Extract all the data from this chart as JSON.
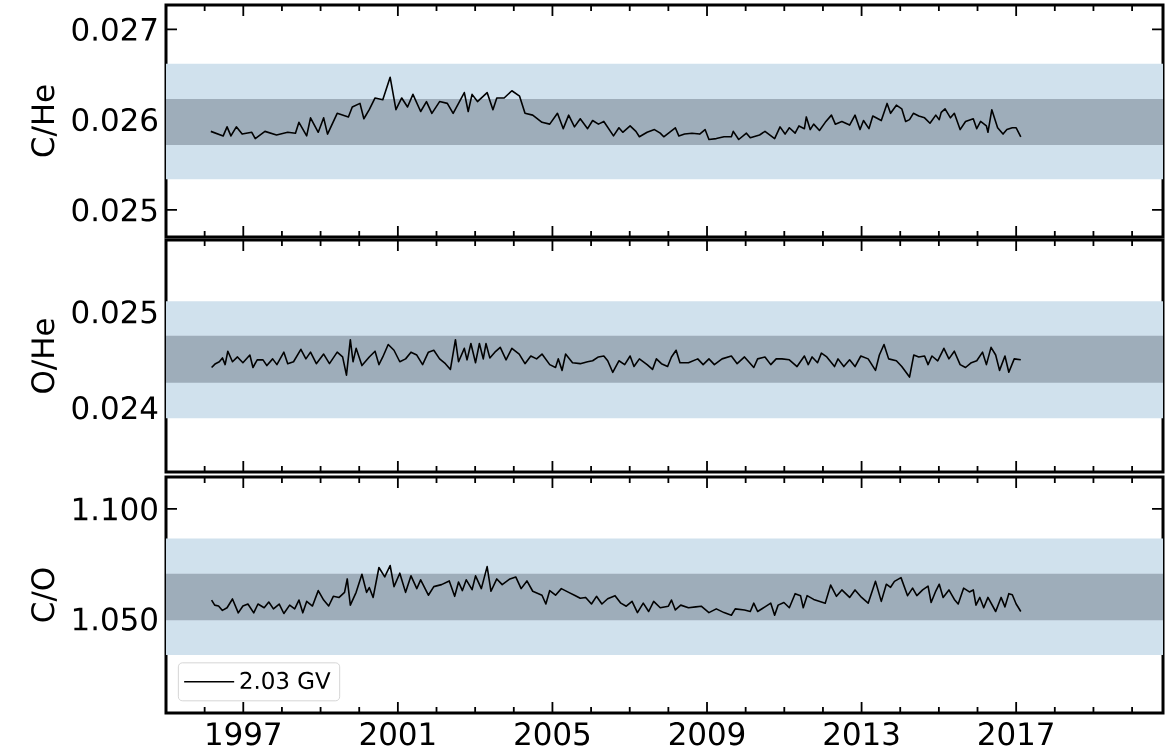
{
  "chart_data": [
    {
      "type": "line",
      "ylabel": "C/He",
      "xlim": [
        1995,
        2020.8
      ],
      "ylim": [
        0.0247,
        0.02727
      ],
      "xticks": [
        {
          "value": 1996,
          "label": null
        },
        1997,
        {
          "value": 1998,
          "label": null
        },
        {
          "value": 1999,
          "label": null
        },
        {
          "value": 2000,
          "label": null
        },
        2001,
        {
          "value": 2002,
          "label": null
        },
        {
          "value": 2003,
          "label": null
        },
        {
          "value": 2004,
          "label": null
        },
        2005,
        {
          "value": 2006,
          "label": null
        },
        {
          "value": 2007,
          "label": null
        },
        {
          "value": 2008,
          "label": null
        },
        2009,
        {
          "value": 2010,
          "label": null
        },
        {
          "value": 2011,
          "label": null
        },
        {
          "value": 2012,
          "label": null
        },
        2013,
        {
          "value": 2014,
          "label": null
        },
        {
          "value": 2015,
          "label": null
        },
        {
          "value": 2016,
          "label": null
        },
        2017,
        {
          "value": 2018,
          "label": null
        },
        {
          "value": 2019,
          "label": null
        },
        {
          "value": 2020,
          "label": null
        }
      ],
      "yticks": [
        0.025,
        0.026,
        0.027
      ],
      "tick_labels": "y",
      "bands": [
        {
          "axis": "y",
          "from": 0.02534,
          "to": 0.02662,
          "color": "#d0e1ed"
        },
        {
          "axis": "y",
          "from": 0.02572,
          "to": 0.02623,
          "color": "#9eadba"
        }
      ],
      "series": [
        {
          "color": "#000000",
          "x": [
            1996.16,
            1996.48,
            1996.58,
            1996.68,
            1996.82,
            1996.97,
            1997.22,
            1997.31,
            1997.56,
            1997.86,
            1998.15,
            1998.35,
            1998.44,
            1998.64,
            1998.74,
            1998.94,
            1999.08,
            1999.18,
            1999.43,
            1999.72,
            1999.82,
            2000.02,
            2000.12,
            2000.26,
            2000.41,
            2000.61,
            2000.8,
            2000.95,
            2001.1,
            2001.25,
            2001.39,
            2001.59,
            2001.74,
            2001.88,
            2002.08,
            2002.28,
            2002.43,
            2002.57,
            2002.72,
            2002.82,
            2002.92,
            2003.06,
            2003.31,
            2003.46,
            2003.56,
            2003.75,
            2003.95,
            2004.15,
            2004.29,
            2004.49,
            2004.73,
            2004.93,
            2005.13,
            2005.28,
            2005.42,
            2005.57,
            2005.72,
            2005.91,
            2006.04,
            2006.19,
            2006.33,
            2006.58,
            2006.72,
            2006.82,
            2007.01,
            2007.16,
            2007.25,
            2007.45,
            2007.64,
            2007.79,
            2007.88,
            2008.03,
            2008.18,
            2008.27,
            2008.42,
            2008.61,
            2008.81,
            2008.95,
            2009.05,
            2009.24,
            2009.44,
            2009.63,
            2009.68,
            2009.82,
            2010.02,
            2010.12,
            2010.36,
            2010.5,
            2010.75,
            2010.89,
            2011.02,
            2011.13,
            2011.28,
            2011.38,
            2011.52,
            2011.57,
            2011.67,
            2011.76,
            2011.91,
            2012.06,
            2012.22,
            2012.32,
            2012.49,
            2012.69,
            2012.83,
            2012.96,
            2013.05,
            2013.19,
            2013.29,
            2013.51,
            2013.66,
            2013.75,
            2013.9,
            2014.04,
            2014.14,
            2014.24,
            2014.34,
            2014.48,
            2014.63,
            2014.77,
            2014.92,
            2015.01,
            2015.06,
            2015.16,
            2015.3,
            2015.4,
            2015.55,
            2015.69,
            2015.89,
            2015.98,
            2016.08,
            2016.23,
            2016.27,
            2016.37,
            2016.52,
            2016.66,
            2016.76,
            2016.9,
            2017.0,
            2017.12
          ],
          "values": [
            0.02587,
            0.02582,
            0.02592,
            0.02582,
            0.02592,
            0.02584,
            0.02586,
            0.02579,
            0.02587,
            0.02583,
            0.02586,
            0.02585,
            0.02597,
            0.02582,
            0.02602,
            0.02586,
            0.02602,
            0.02584,
            0.02607,
            0.02603,
            0.02614,
            0.02618,
            0.02601,
            0.02611,
            0.02624,
            0.02622,
            0.02647,
            0.02611,
            0.02624,
            0.02614,
            0.02628,
            0.02609,
            0.0262,
            0.02607,
            0.0262,
            0.02618,
            0.02607,
            0.02618,
            0.0263,
            0.02609,
            0.02628,
            0.0262,
            0.0263,
            0.02611,
            0.02624,
            0.02624,
            0.02632,
            0.02626,
            0.02607,
            0.02605,
            0.02597,
            0.02595,
            0.02607,
            0.0259,
            0.02605,
            0.02592,
            0.02601,
            0.0259,
            0.02599,
            0.02595,
            0.02598,
            0.02582,
            0.02591,
            0.02586,
            0.02593,
            0.02587,
            0.02581,
            0.02586,
            0.02589,
            0.02585,
            0.02581,
            0.02586,
            0.02591,
            0.02582,
            0.02584,
            0.02585,
            0.02584,
            0.02589,
            0.02578,
            0.02579,
            0.02581,
            0.02581,
            0.02587,
            0.02578,
            0.02585,
            0.0258,
            0.02583,
            0.02587,
            0.02579,
            0.02592,
            0.02584,
            0.02591,
            0.02585,
            0.02593,
            0.0259,
            0.02603,
            0.02589,
            0.02595,
            0.02588,
            0.02597,
            0.02605,
            0.02595,
            0.02598,
            0.02594,
            0.02605,
            0.02589,
            0.02599,
            0.0259,
            0.02604,
            0.02599,
            0.02618,
            0.02607,
            0.02616,
            0.02612,
            0.02598,
            0.026,
            0.02607,
            0.02604,
            0.02602,
            0.02596,
            0.02605,
            0.026,
            0.02608,
            0.02612,
            0.02602,
            0.02607,
            0.02589,
            0.02598,
            0.02601,
            0.0259,
            0.02598,
            0.02593,
            0.02586,
            0.02611,
            0.02591,
            0.02584,
            0.02589,
            0.02591,
            0.02591,
            0.02581
          ]
        }
      ]
    },
    {
      "type": "line",
      "ylabel": "O/He",
      "xlim": [
        1995,
        2020.8
      ],
      "ylim": [
        0.02333,
        0.02575
      ],
      "xticks": [
        {
          "value": 1996,
          "label": null
        },
        1997,
        {
          "value": 1998,
          "label": null
        },
        {
          "value": 1999,
          "label": null
        },
        {
          "value": 2000,
          "label": null
        },
        2001,
        {
          "value": 2002,
          "label": null
        },
        {
          "value": 2003,
          "label": null
        },
        {
          "value": 2004,
          "label": null
        },
        2005,
        {
          "value": 2006,
          "label": null
        },
        {
          "value": 2007,
          "label": null
        },
        {
          "value": 2008,
          "label": null
        },
        2009,
        {
          "value": 2010,
          "label": null
        },
        {
          "value": 2011,
          "label": null
        },
        {
          "value": 2012,
          "label": null
        },
        2013,
        {
          "value": 2014,
          "label": null
        },
        {
          "value": 2015,
          "label": null
        },
        {
          "value": 2016,
          "label": null
        },
        2017,
        {
          "value": 2018,
          "label": null
        },
        {
          "value": 2019,
          "label": null
        },
        {
          "value": 2020,
          "label": null
        }
      ],
      "yticks": [
        0.024,
        0.025
      ],
      "tick_labels": "y",
      "bands": [
        {
          "axis": "y",
          "from": 0.02389,
          "to": 0.02511,
          "color": "#d0e1ed"
        },
        {
          "axis": "y",
          "from": 0.02426,
          "to": 0.02475,
          "color": "#9eadba"
        }
      ],
      "series": [
        {
          "color": "#000000",
          "x": [
            1996.18,
            1996.28,
            1996.38,
            1996.46,
            1996.53,
            1996.6,
            1996.72,
            1996.85,
            1996.99,
            1997.17,
            1997.25,
            1997.36,
            1997.51,
            1997.61,
            1997.76,
            1997.87,
            1998.05,
            1998.15,
            1998.3,
            1998.49,
            1998.62,
            1998.74,
            1998.89,
            1999.08,
            1999.23,
            1999.43,
            1999.57,
            1999.67,
            1999.77,
            1999.84,
            1999.92,
            2000.07,
            2000.26,
            2000.41,
            2000.51,
            2000.61,
            2000.75,
            2000.9,
            2001.05,
            2001.2,
            2001.34,
            2001.49,
            2001.64,
            2001.79,
            2001.93,
            2002.08,
            2002.23,
            2002.36,
            2002.49,
            2002.57,
            2002.72,
            2002.79,
            2002.89,
            2003.01,
            2003.11,
            2003.21,
            2003.28,
            2003.38,
            2003.51,
            2003.65,
            2003.8,
            2003.95,
            2004.14,
            2004.29,
            2004.44,
            2004.59,
            2004.73,
            2004.93,
            2005.08,
            2005.15,
            2005.25,
            2005.34,
            2005.52,
            2005.72,
            2005.91,
            2006.04,
            2006.19,
            2006.33,
            2006.43,
            2006.56,
            2006.72,
            2006.87,
            2007.01,
            2007.11,
            2007.25,
            2007.45,
            2007.59,
            2007.69,
            2007.82,
            2007.98,
            2008.08,
            2008.2,
            2008.3,
            2008.52,
            2008.76,
            2008.9,
            2009.05,
            2009.19,
            2009.39,
            2009.63,
            2009.78,
            2009.97,
            2010.21,
            2010.31,
            2010.5,
            2010.65,
            2010.79,
            2010.94,
            2011.13,
            2011.33,
            2011.52,
            2011.62,
            2011.72,
            2011.86,
            2011.96,
            2012.1,
            2012.3,
            2012.39,
            2012.54,
            2012.69,
            2012.83,
            2012.98,
            2013.17,
            2013.36,
            2013.46,
            2013.58,
            2013.7,
            2013.9,
            2014.04,
            2014.24,
            2014.35,
            2014.48,
            2014.63,
            2014.72,
            2014.82,
            2014.97,
            2015.13,
            2015.26,
            2015.4,
            2015.55,
            2015.69,
            2015.84,
            2015.98,
            2016.13,
            2016.23,
            2016.35,
            2016.47,
            2016.57,
            2016.71,
            2016.81,
            2016.95,
            2017.12
          ],
          "values": [
            0.02442,
            0.02446,
            0.02448,
            0.02452,
            0.02445,
            0.02459,
            0.02448,
            0.02453,
            0.02447,
            0.02455,
            0.02442,
            0.0245,
            0.0245,
            0.02444,
            0.02451,
            0.02445,
            0.02458,
            0.02446,
            0.02448,
            0.02461,
            0.02451,
            0.02458,
            0.02446,
            0.02456,
            0.02446,
            0.02458,
            0.02453,
            0.02434,
            0.02471,
            0.02448,
            0.02462,
            0.02444,
            0.02453,
            0.02459,
            0.02445,
            0.02453,
            0.02466,
            0.0246,
            0.02448,
            0.02451,
            0.02458,
            0.02455,
            0.02445,
            0.02458,
            0.0246,
            0.02451,
            0.02446,
            0.0244,
            0.02471,
            0.02448,
            0.02462,
            0.0245,
            0.02467,
            0.02447,
            0.02467,
            0.02451,
            0.02467,
            0.02452,
            0.02458,
            0.02463,
            0.0245,
            0.02462,
            0.02456,
            0.02446,
            0.02454,
            0.02451,
            0.02456,
            0.02445,
            0.02442,
            0.02451,
            0.02439,
            0.02456,
            0.02447,
            0.02446,
            0.02448,
            0.02449,
            0.02453,
            0.02454,
            0.02449,
            0.02437,
            0.02449,
            0.02445,
            0.02454,
            0.02443,
            0.02451,
            0.02445,
            0.0244,
            0.02451,
            0.02446,
            0.02443,
            0.02453,
            0.0246,
            0.02447,
            0.02447,
            0.02451,
            0.02445,
            0.02451,
            0.02445,
            0.02451,
            0.02454,
            0.02446,
            0.02453,
            0.02442,
            0.02451,
            0.02453,
            0.02445,
            0.02451,
            0.02451,
            0.0245,
            0.02443,
            0.02454,
            0.02445,
            0.02453,
            0.02447,
            0.02457,
            0.02453,
            0.02443,
            0.02451,
            0.02443,
            0.0245,
            0.02443,
            0.02454,
            0.02451,
            0.02439,
            0.02455,
            0.02466,
            0.02451,
            0.02449,
            0.02443,
            0.02432,
            0.02455,
            0.02453,
            0.02454,
            0.02445,
            0.02454,
            0.02449,
            0.02462,
            0.02451,
            0.02459,
            0.02445,
            0.02442,
            0.02447,
            0.02449,
            0.02458,
            0.02445,
            0.02463,
            0.02455,
            0.02439,
            0.02454,
            0.02437,
            0.02451,
            0.0245
          ]
        }
      ]
    },
    {
      "type": "line",
      "ylabel": "C/O",
      "xlim": [
        1995,
        2020.8
      ],
      "ylim": [
        1.0073,
        1.1145
      ],
      "legend": "bottom left",
      "xticks": [
        {
          "value": 1996,
          "label": null
        },
        1997,
        {
          "value": 1998,
          "label": null
        },
        {
          "value": 1999,
          "label": null
        },
        {
          "value": 2000,
          "label": null
        },
        2001,
        {
          "value": 2002,
          "label": null
        },
        {
          "value": 2003,
          "label": null
        },
        {
          "value": 2004,
          "label": null
        },
        2005,
        {
          "value": 2006,
          "label": null
        },
        {
          "value": 2007,
          "label": null
        },
        {
          "value": 2008,
          "label": null
        },
        2009,
        {
          "value": 2010,
          "label": null
        },
        {
          "value": 2011,
          "label": null
        },
        {
          "value": 2012,
          "label": null
        },
        2013,
        {
          "value": 2014,
          "label": null
        },
        {
          "value": 2015,
          "label": null
        },
        {
          "value": 2016,
          "label": null
        },
        2017,
        {
          "value": 2018,
          "label": null
        },
        {
          "value": 2019,
          "label": null
        },
        {
          "value": 2020,
          "label": null
        }
      ],
      "yticks": [
        {
          "value": 1.05,
          "label": "1.050"
        },
        {
          "value": 1.1,
          "label": "1.100"
        }
      ],
      "bands": [
        {
          "axis": "y",
          "from": 1.0336,
          "to": 1.0866,
          "color": "#d0e1ed"
        },
        {
          "axis": "y",
          "from": 1.0494,
          "to": 1.0705,
          "color": "#9eadba"
        }
      ],
      "series": [
        {
          "name": "2.03 GV",
          "color": "#000000",
          "x": [
            1996.18,
            1996.26,
            1996.36,
            1996.46,
            1996.58,
            1996.72,
            1996.87,
            1996.99,
            1997.12,
            1997.27,
            1997.38,
            1997.54,
            1997.66,
            1997.78,
            1997.93,
            1998.05,
            1998.2,
            1998.33,
            1998.44,
            1998.54,
            1998.64,
            1998.79,
            1998.94,
            1999.08,
            1999.21,
            1999.33,
            1999.48,
            1999.62,
            1999.69,
            1999.77,
            1999.92,
            2000.07,
            2000.19,
            2000.26,
            2000.36,
            2000.51,
            2000.66,
            2000.8,
            2000.9,
            2001.05,
            2001.2,
            2001.34,
            2001.49,
            2001.59,
            2001.79,
            2001.93,
            2002.13,
            2002.33,
            2002.47,
            2002.57,
            2002.67,
            2002.77,
            2002.92,
            2003.01,
            2003.16,
            2003.31,
            2003.41,
            2003.56,
            2003.7,
            2003.9,
            2004.05,
            2004.19,
            2004.34,
            2004.49,
            2004.73,
            2004.83,
            2004.93,
            2005.08,
            2005.23,
            2005.42,
            2005.57,
            2005.72,
            2005.86,
            2006.01,
            2006.14,
            2006.28,
            2006.43,
            2006.62,
            2006.77,
            2006.91,
            2007.06,
            2007.2,
            2007.35,
            2007.49,
            2007.62,
            2007.79,
            2008.0,
            2008.08,
            2008.18,
            2008.32,
            2008.52,
            2008.71,
            2008.85,
            2009.05,
            2009.24,
            2009.44,
            2009.63,
            2009.73,
            2009.97,
            2010.12,
            2010.21,
            2010.31,
            2010.5,
            2010.65,
            2010.75,
            2010.84,
            2010.99,
            2011.13,
            2011.28,
            2011.42,
            2011.49,
            2011.59,
            2011.76,
            2012.06,
            2012.2,
            2012.35,
            2012.49,
            2012.69,
            2012.83,
            2013.0,
            2013.17,
            2013.36,
            2013.51,
            2013.64,
            2013.75,
            2013.85,
            2014.02,
            2014.19,
            2014.32,
            2014.43,
            2014.58,
            2014.72,
            2014.8,
            2014.92,
            2015.01,
            2015.11,
            2015.26,
            2015.4,
            2015.5,
            2015.64,
            2015.79,
            2015.89,
            2015.96,
            2016.06,
            2016.16,
            2016.27,
            2016.47,
            2016.61,
            2016.71,
            2016.81,
            2016.9,
            2017.0,
            2017.12
          ],
          "values": [
            1.0586,
            1.0563,
            1.0559,
            1.0539,
            1.0551,
            1.0591,
            1.0528,
            1.0559,
            1.0568,
            1.0528,
            1.0568,
            1.0551,
            1.0577,
            1.0546,
            1.0568,
            1.0525,
            1.0563,
            1.0546,
            1.0586,
            1.0528,
            1.058,
            1.0559,
            1.0629,
            1.0586,
            1.0559,
            1.0603,
            1.0598,
            1.0621,
            1.0682,
            1.0563,
            1.0621,
            1.0703,
            1.0621,
            1.0643,
            1.0598,
            1.0734,
            1.0691,
            1.0743,
            1.0647,
            1.0708,
            1.0621,
            1.0696,
            1.0638,
            1.0678,
            1.0608,
            1.0647,
            1.0656,
            1.0673,
            1.0603,
            1.0668,
            1.0629,
            1.0678,
            1.0633,
            1.0696,
            1.0638,
            1.0738,
            1.0626,
            1.0682,
            1.0656,
            1.0682,
            1.0691,
            1.0638,
            1.0673,
            1.0626,
            1.0608,
            1.0568,
            1.0629,
            1.0608,
            1.0638,
            1.0621,
            1.0608,
            1.0594,
            1.0598,
            1.0568,
            1.0603,
            1.0568,
            1.0592,
            1.0606,
            1.0572,
            1.0558,
            1.058,
            1.0529,
            1.0572,
            1.0534,
            1.058,
            1.0551,
            1.0558,
            1.0586,
            1.0541,
            1.0563,
            1.0551,
            1.0555,
            1.0558,
            1.0529,
            1.0546,
            1.0529,
            1.0517,
            1.0546,
            1.0541,
            1.0534,
            1.0572,
            1.0534,
            1.0555,
            1.0572,
            1.0517,
            1.0563,
            1.0575,
            1.0551,
            1.0615,
            1.0606,
            1.0551,
            1.0606,
            1.0589,
            1.0572,
            1.0654,
            1.0603,
            1.0632,
            1.0598,
            1.0632,
            1.0598,
            1.0572,
            1.0671,
            1.058,
            1.0658,
            1.0644,
            1.0671,
            1.0688,
            1.0606,
            1.064,
            1.0606,
            1.0632,
            1.0649,
            1.0575,
            1.0627,
            1.0658,
            1.0598,
            1.0632,
            1.0589,
            1.0568,
            1.064,
            1.0623,
            1.0632,
            1.0563,
            1.0598,
            1.0551,
            1.0598,
            1.0534,
            1.0598,
            1.0555,
            1.0615,
            1.061,
            1.0568,
            1.0534
          ]
        }
      ]
    }
  ]
}
